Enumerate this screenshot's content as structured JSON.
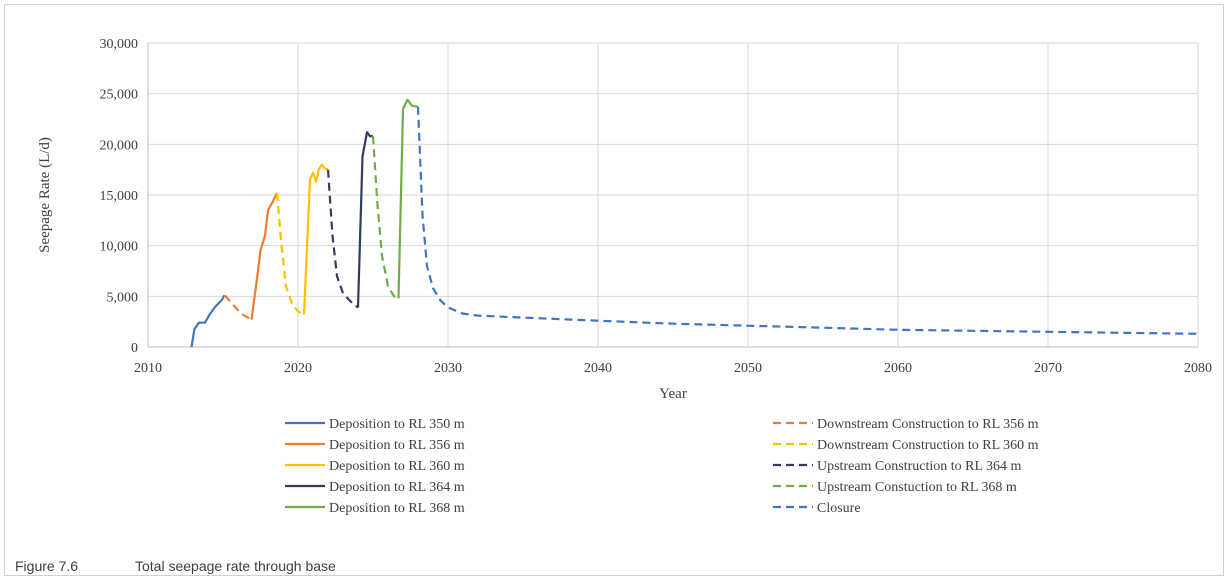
{
  "caption": {
    "number": "Figure 7.6",
    "text": "Total seepage rate through base"
  },
  "chart_data": {
    "type": "line",
    "xlabel": "Year",
    "ylabel": "Seepage Rate (L/d)",
    "xlim": [
      2010,
      2080
    ],
    "ylim": [
      0,
      30000
    ],
    "x_ticks": [
      "2010",
      "2020",
      "2030",
      "2040",
      "2050",
      "2060",
      "2070",
      "2080"
    ],
    "y_ticks": [
      "0",
      "5,000",
      "10,000",
      "15,000",
      "20,000",
      "25,000",
      "30,000"
    ],
    "grid": true,
    "legend_position": "bottom",
    "series": [
      {
        "name": "Deposition to RL 350 m",
        "color": "#4472c4",
        "dash": false,
        "x": [
          2012.9,
          2013.1,
          2013.4,
          2013.8,
          2014.1,
          2014.5,
          2014.9,
          2015.1
        ],
        "y": [
          0,
          1800,
          2400,
          2400,
          3200,
          4000,
          4600,
          5100
        ]
      },
      {
        "name": "Deposition to RL 356 m",
        "color": "#ed7d31",
        "dash": false,
        "x": [
          2016.9,
          2017.2,
          2017.5,
          2017.8,
          2018.0,
          2018.3,
          2018.6
        ],
        "y": [
          2700,
          6000,
          9500,
          11000,
          13500,
          14300,
          15200
        ]
      },
      {
        "name": "Deposition to RL 360 m",
        "color": "#ffc000",
        "dash": false,
        "x": [
          2020.4,
          2020.8,
          2021.0,
          2021.2,
          2021.4,
          2021.6,
          2021.8,
          2022.0
        ],
        "y": [
          3200,
          16500,
          17200,
          16300,
          17600,
          18000,
          17600,
          17500
        ]
      },
      {
        "name": "Deposition to RL 364 m",
        "color": "#2f3d5e",
        "dash": false,
        "x": [
          2024.0,
          2024.3,
          2024.6,
          2024.8,
          2025.0
        ],
        "y": [
          3900,
          18800,
          21200,
          20800,
          20800
        ]
      },
      {
        "name": "Deposition to RL 368 m",
        "color": "#70ad47",
        "dash": false,
        "x": [
          2026.7,
          2027.0,
          2027.3,
          2027.6,
          2028.0
        ],
        "y": [
          4800,
          23500,
          24400,
          23800,
          23700
        ]
      },
      {
        "name": "Downstream Construction to RL 356 m",
        "color": "#ed7d31",
        "dash": true,
        "x": [
          2015.1,
          2015.6,
          2016.2,
          2016.9
        ],
        "y": [
          5100,
          4300,
          3300,
          2700
        ]
      },
      {
        "name": "Downstream Construction to RL 360 m",
        "color": "#ffc000",
        "dash": true,
        "x": [
          2018.6,
          2018.9,
          2019.2,
          2019.6,
          2020.0,
          2020.4
        ],
        "y": [
          15200,
          10000,
          6000,
          4300,
          3500,
          3200
        ]
      },
      {
        "name": "Upstream Construction to RL 364 m",
        "color": "#2f3d5e",
        "dash": true,
        "x": [
          2022.0,
          2022.3,
          2022.6,
          2023.0,
          2023.5,
          2024.0
        ],
        "y": [
          17500,
          11000,
          7000,
          5300,
          4500,
          3900
        ]
      },
      {
        "name": "Upstream Constuction to RL 368 m",
        "color": "#70ad47",
        "dash": true,
        "x": [
          2025.0,
          2025.3,
          2025.6,
          2026.0,
          2026.4,
          2026.7
        ],
        "y": [
          20800,
          14000,
          9000,
          6000,
          5000,
          4800
        ]
      },
      {
        "name": "Closure",
        "color": "#4472c4",
        "dash": true,
        "x": [
          2028.0,
          2028.3,
          2028.6,
          2029.0,
          2029.5,
          2030.0,
          2031.0,
          2032.0,
          2035.0,
          2040.0,
          2045.0,
          2050.0,
          2055.0,
          2060.0,
          2065.0,
          2070.0,
          2075.0,
          2080.0
        ],
        "y": [
          23700,
          13000,
          8000,
          5800,
          4600,
          3900,
          3300,
          3100,
          2900,
          2600,
          2300,
          2100,
          1900,
          1700,
          1600,
          1500,
          1400,
          1300
        ]
      }
    ]
  }
}
